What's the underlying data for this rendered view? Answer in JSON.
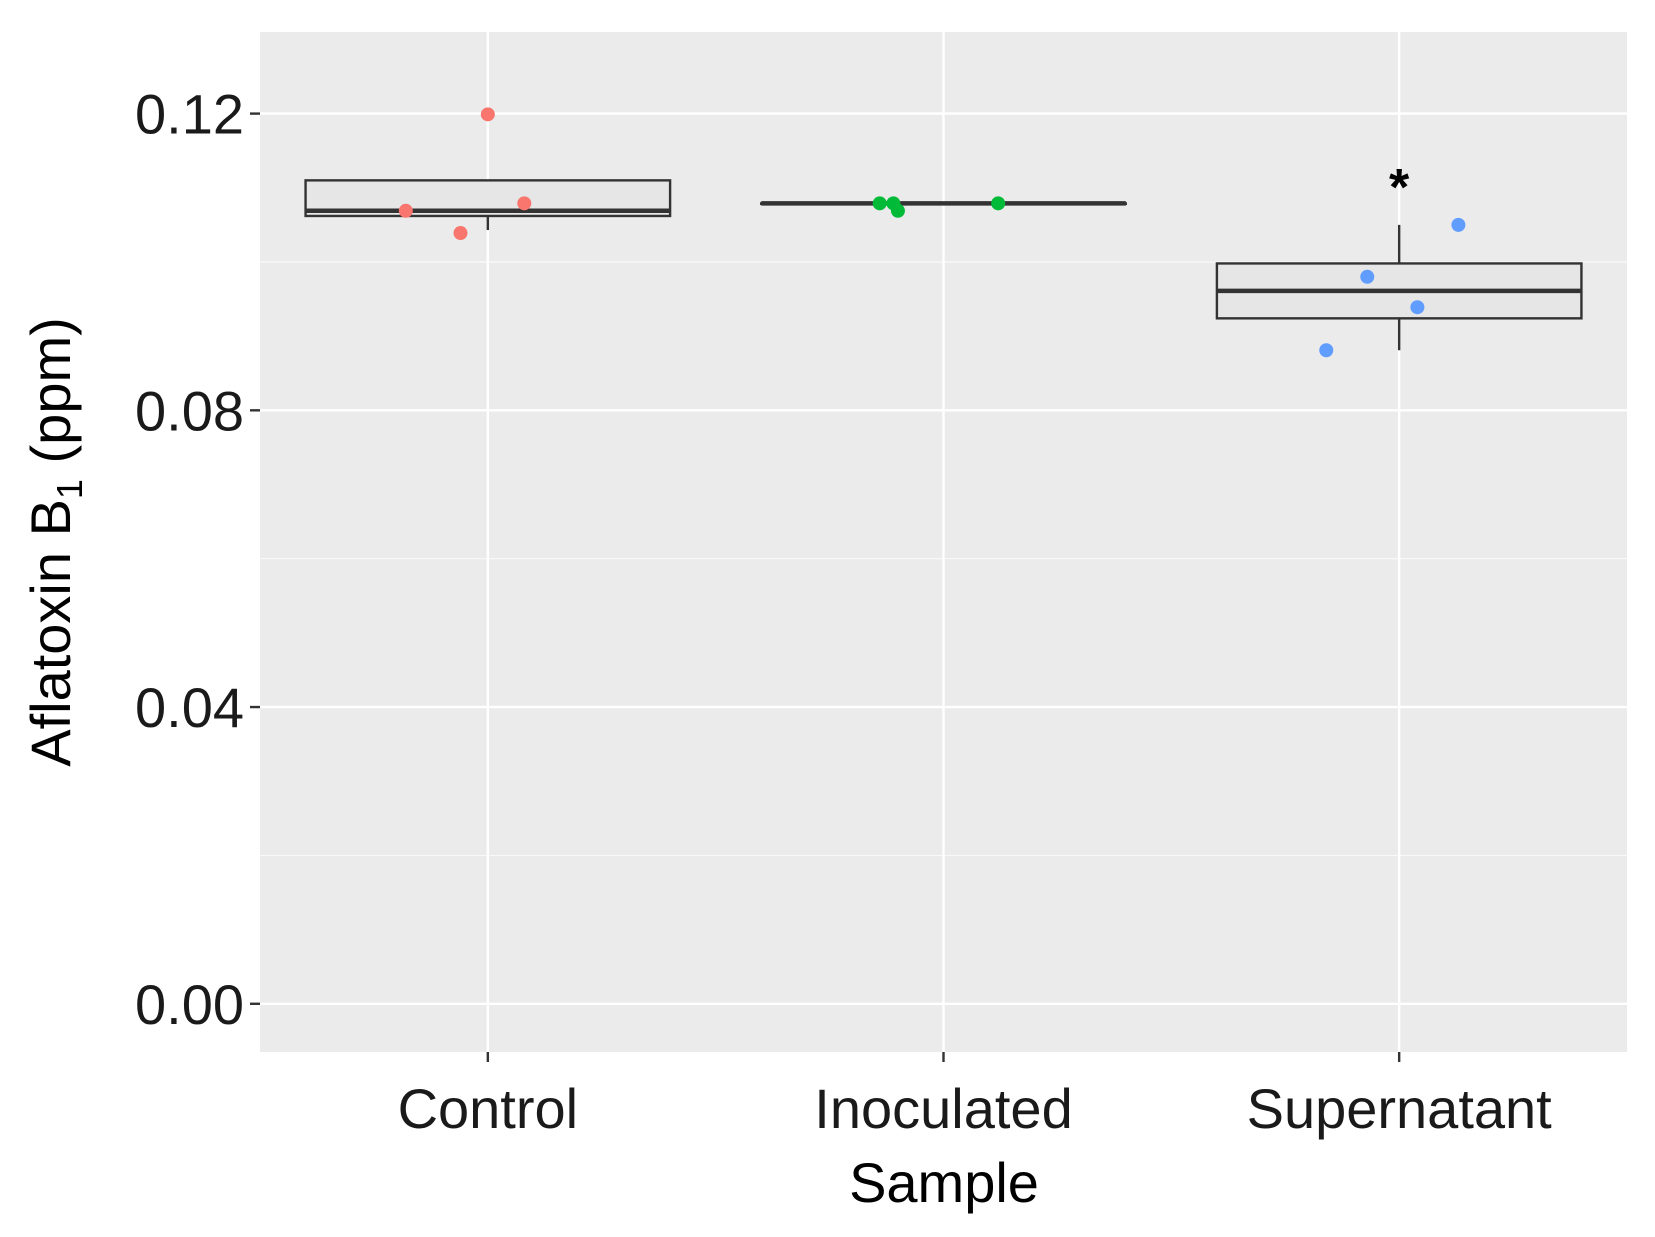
{
  "chart_data": {
    "type": "boxplot",
    "title": "",
    "xlabel": "Sample",
    "ylabel_main": "Aflatoxin B",
    "ylabel_sub": "1",
    "ylabel_unit": " (ppm)",
    "ylim": [
      -0.0065,
      0.131
    ],
    "yticks": [
      0.0,
      0.04,
      0.08,
      0.12
    ],
    "ytick_labels": [
      "0.00",
      "0.04",
      "0.08",
      "0.12"
    ],
    "categories": [
      "Control",
      "Inoculated",
      "Supernatant"
    ],
    "series": [
      {
        "name": "Control",
        "color": "#F8766D",
        "box": {
          "whisker_low": 0.1043,
          "q1": 0.1062,
          "median": 0.1069,
          "q3": 0.111,
          "whisker_high": 0.111
        },
        "points": [
          {
            "offset": -0.18,
            "value": 0.1069
          },
          {
            "offset": -0.06,
            "value": 0.1039
          },
          {
            "offset": 0.0,
            "value": 0.1199
          },
          {
            "offset": 0.08,
            "value": 0.1079
          }
        ]
      },
      {
        "name": "Inoculated",
        "color": "#00BA38",
        "box": {
          "whisker_low": 0.1079,
          "q1": 0.1079,
          "median": 0.1079,
          "q3": 0.1079,
          "whisker_high": 0.1079
        },
        "points": [
          {
            "offset": -0.14,
            "value": 0.1079
          },
          {
            "offset": -0.11,
            "value": 0.1079
          },
          {
            "offset": -0.1,
            "value": 0.1069
          },
          {
            "offset": 0.12,
            "value": 0.1079
          }
        ]
      },
      {
        "name": "Supernatant",
        "color": "#619CFF",
        "box": {
          "whisker_low": 0.0881,
          "q1": 0.0924,
          "median": 0.0961,
          "q3": 0.0998,
          "whisker_high": 0.105
        },
        "points": [
          {
            "offset": -0.16,
            "value": 0.0881
          },
          {
            "offset": -0.07,
            "value": 0.098
          },
          {
            "offset": 0.04,
            "value": 0.0939
          },
          {
            "offset": 0.13,
            "value": 0.105
          }
        ]
      }
    ],
    "annotations": [
      {
        "text": "*",
        "category": "Supernatant",
        "value": 0.1125
      }
    ],
    "grid": true,
    "legend": "none"
  },
  "colors": {
    "panel": "#EBEBEB",
    "grid": "#FFFFFF",
    "box_fill": "#E6E6E6",
    "box_line": "#333333"
  }
}
